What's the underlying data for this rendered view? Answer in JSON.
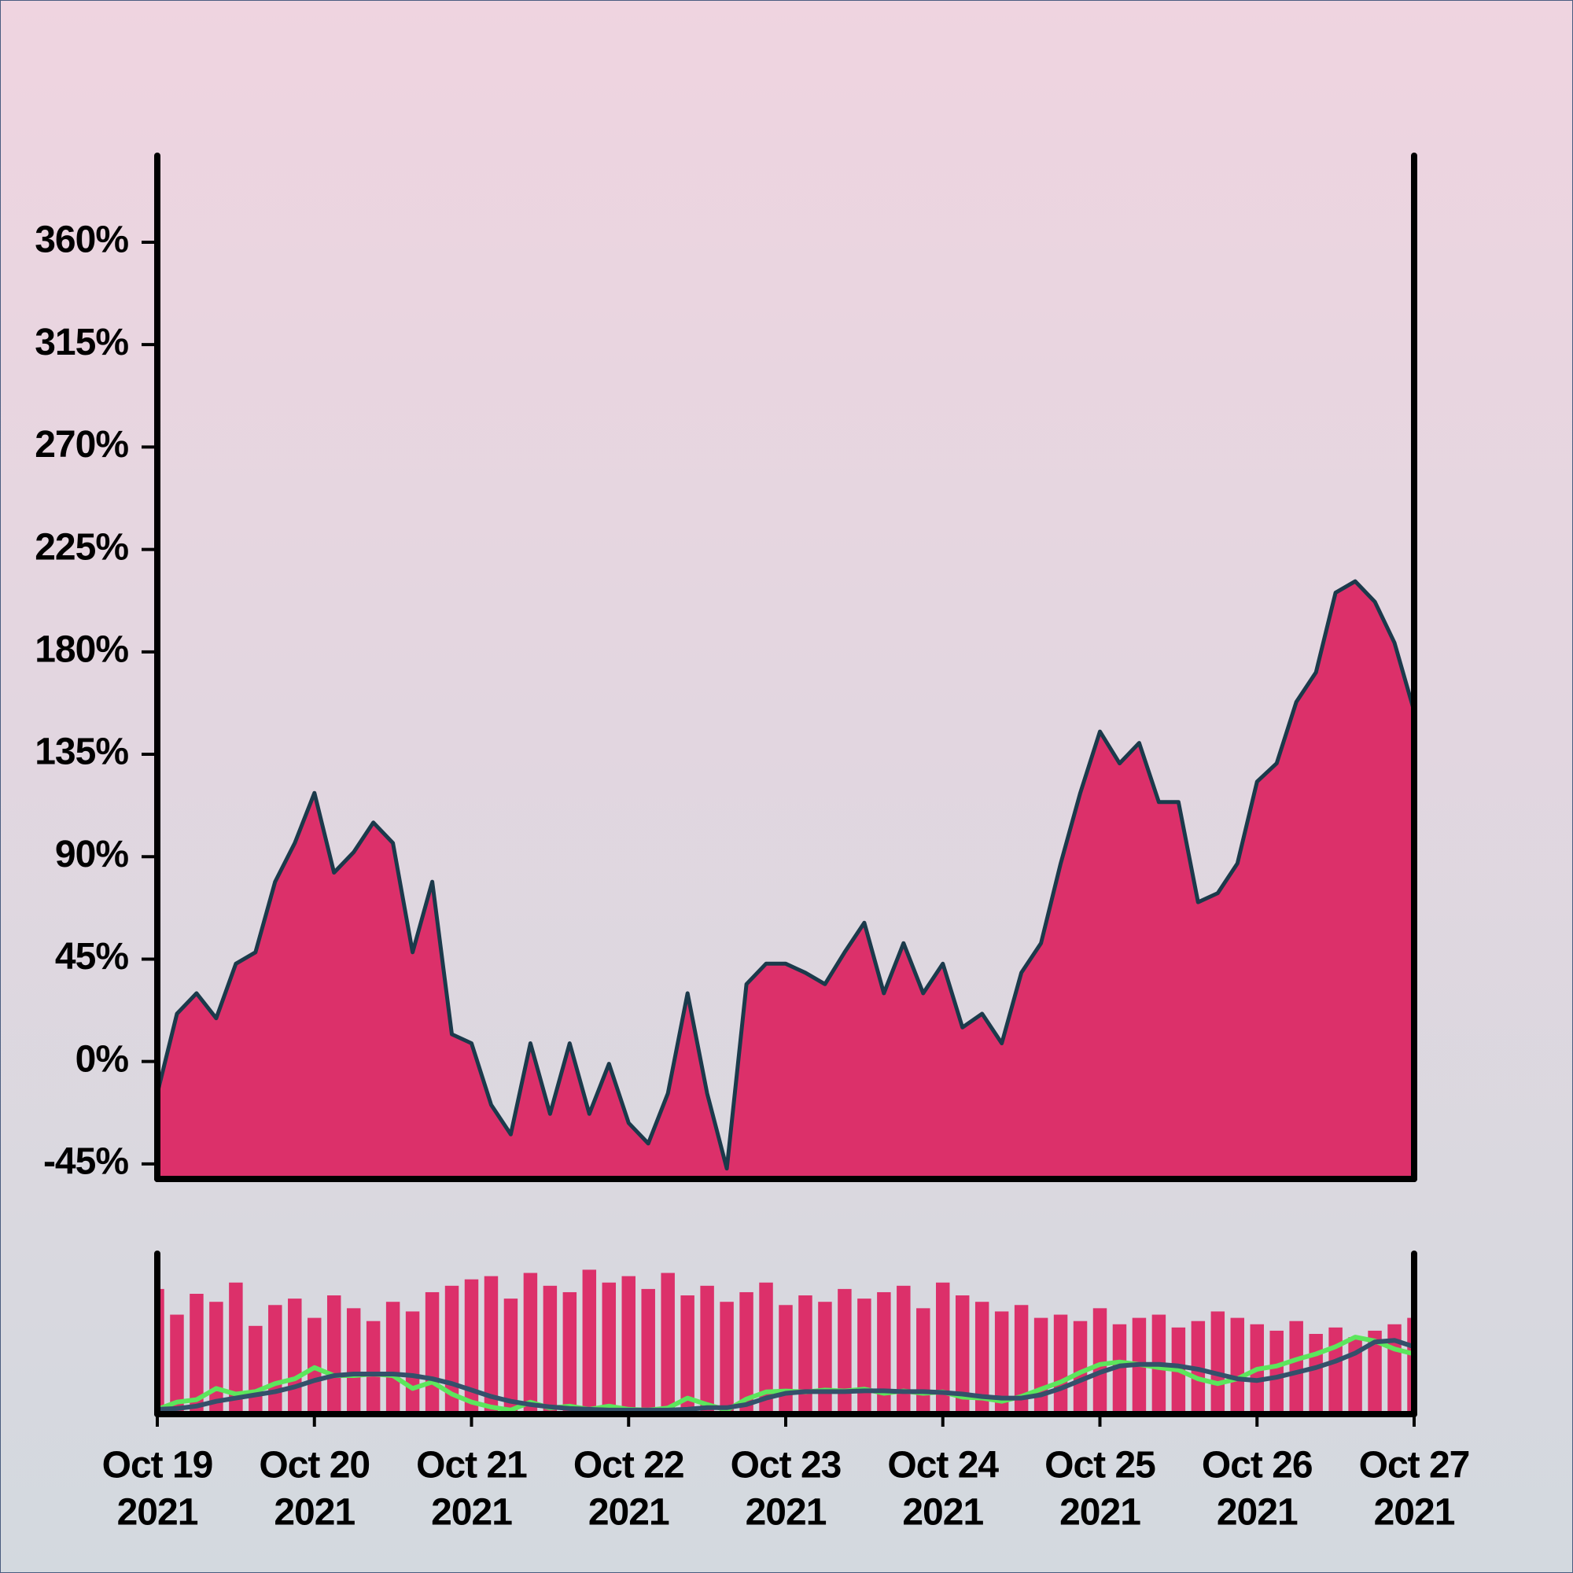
{
  "chart_data": [
    {
      "type": "area",
      "color": "#dc306a",
      "line_color": "#1b3a4b",
      "xlim": [
        "2021-10-19T00:00",
        "2021-10-27T00:00"
      ],
      "ylim": [
        -51.6,
        398
      ],
      "yticks": [
        {
          "value": -45,
          "label": "-45%"
        },
        {
          "value": 0,
          "label": "0%"
        },
        {
          "value": 45,
          "label": "45%"
        },
        {
          "value": 90,
          "label": "90%"
        },
        {
          "value": 135,
          "label": "135%"
        },
        {
          "value": 180,
          "label": "180%"
        },
        {
          "value": 225,
          "label": "225%"
        },
        {
          "value": 270,
          "label": "270%"
        },
        {
          "value": 315,
          "label": "315%"
        },
        {
          "value": 360,
          "label": "360%"
        }
      ],
      "x": [
        "2021-10-19T00:00",
        "2021-10-19T03:00",
        "2021-10-19T06:00",
        "2021-10-19T09:00",
        "2021-10-19T12:00",
        "2021-10-19T15:00",
        "2021-10-19T18:00",
        "2021-10-19T21:00",
        "2021-10-20T00:00",
        "2021-10-20T03:00",
        "2021-10-20T06:00",
        "2021-10-20T09:00",
        "2021-10-20T12:00",
        "2021-10-20T15:00",
        "2021-10-20T18:00",
        "2021-10-20T21:00",
        "2021-10-21T00:00",
        "2021-10-21T03:00",
        "2021-10-21T06:00",
        "2021-10-21T09:00",
        "2021-10-21T12:00",
        "2021-10-21T15:00",
        "2021-10-21T18:00",
        "2021-10-21T21:00",
        "2021-10-22T00:00",
        "2021-10-22T03:00",
        "2021-10-22T06:00",
        "2021-10-22T09:00",
        "2021-10-22T12:00",
        "2021-10-22T15:00",
        "2021-10-22T18:00",
        "2021-10-22T21:00",
        "2021-10-23T00:00",
        "2021-10-23T03:00",
        "2021-10-23T06:00",
        "2021-10-23T09:00",
        "2021-10-23T12:00",
        "2021-10-23T15:00",
        "2021-10-23T18:00",
        "2021-10-23T21:00",
        "2021-10-24T00:00",
        "2021-10-24T03:00",
        "2021-10-24T06:00",
        "2021-10-24T09:00",
        "2021-10-24T12:00",
        "2021-10-24T15:00",
        "2021-10-24T18:00",
        "2021-10-24T21:00",
        "2021-10-25T00:00",
        "2021-10-25T03:00",
        "2021-10-25T06:00",
        "2021-10-25T09:00",
        "2021-10-25T12:00",
        "2021-10-25T15:00",
        "2021-10-25T18:00",
        "2021-10-25T21:00",
        "2021-10-26T00:00",
        "2021-10-26T03:00",
        "2021-10-26T06:00",
        "2021-10-26T09:00",
        "2021-10-26T12:00",
        "2021-10-26T15:00",
        "2021-10-26T18:00",
        "2021-10-26T21:00",
        "2021-10-27T00:00"
      ],
      "values": [
        -14,
        21,
        30,
        19,
        43,
        48,
        79,
        96,
        118,
        83,
        92,
        105,
        96,
        48,
        79,
        12,
        8,
        -19,
        -32,
        8,
        -23,
        8,
        -23,
        -1,
        -27,
        -36,
        -14,
        30,
        -14,
        -47,
        34,
        43,
        43,
        39,
        34,
        48,
        61,
        30,
        52,
        30,
        43,
        15,
        21,
        8,
        39,
        52,
        87,
        118,
        145,
        131,
        140,
        114,
        114,
        70,
        74,
        87,
        123,
        131,
        158,
        171,
        206,
        211,
        202,
        184,
        154
      ]
    },
    {
      "type": "bar",
      "color": "#dc306a",
      "xlim": [
        "2021-10-19T00:00",
        "2021-10-27T00:00"
      ],
      "ylim": [
        0,
        100
      ],
      "xticks": [
        {
          "value": "2021-10-19T00:00",
          "label": [
            "Oct 19",
            "2021"
          ]
        },
        {
          "value": "2021-10-20T00:00",
          "label": [
            "Oct 20",
            "2021"
          ]
        },
        {
          "value": "2021-10-21T00:00",
          "label": [
            "Oct 21",
            "2021"
          ]
        },
        {
          "value": "2021-10-22T00:00",
          "label": [
            "Oct 22",
            "2021"
          ]
        },
        {
          "value": "2021-10-23T00:00",
          "label": [
            "Oct 23",
            "2021"
          ]
        },
        {
          "value": "2021-10-24T00:00",
          "label": [
            "Oct 24",
            "2021"
          ]
        },
        {
          "value": "2021-10-25T00:00",
          "label": [
            "Oct 25",
            "2021"
          ]
        },
        {
          "value": "2021-10-26T00:00",
          "label": [
            "Oct 26",
            "2021"
          ]
        },
        {
          "value": "2021-10-27T00:00",
          "label": [
            "Oct 27",
            "2021"
          ]
        }
      ],
      "x": [
        "2021-10-19T00:00",
        "2021-10-19T03:00",
        "2021-10-19T06:00",
        "2021-10-19T09:00",
        "2021-10-19T12:00",
        "2021-10-19T15:00",
        "2021-10-19T18:00",
        "2021-10-19T21:00",
        "2021-10-20T00:00",
        "2021-10-20T03:00",
        "2021-10-20T06:00",
        "2021-10-20T09:00",
        "2021-10-20T12:00",
        "2021-10-20T15:00",
        "2021-10-20T18:00",
        "2021-10-20T21:00",
        "2021-10-21T00:00",
        "2021-10-21T03:00",
        "2021-10-21T06:00",
        "2021-10-21T09:00",
        "2021-10-21T12:00",
        "2021-10-21T15:00",
        "2021-10-21T18:00",
        "2021-10-21T21:00",
        "2021-10-22T00:00",
        "2021-10-22T03:00",
        "2021-10-22T06:00",
        "2021-10-22T09:00",
        "2021-10-22T12:00",
        "2021-10-22T15:00",
        "2021-10-22T18:00",
        "2021-10-22T21:00",
        "2021-10-23T00:00",
        "2021-10-23T03:00",
        "2021-10-23T06:00",
        "2021-10-23T09:00",
        "2021-10-23T12:00",
        "2021-10-23T15:00",
        "2021-10-23T18:00",
        "2021-10-23T21:00",
        "2021-10-24T00:00",
        "2021-10-24T03:00",
        "2021-10-24T06:00",
        "2021-10-24T09:00",
        "2021-10-24T12:00",
        "2021-10-24T15:00",
        "2021-10-24T18:00",
        "2021-10-24T21:00",
        "2021-10-25T00:00",
        "2021-10-25T03:00",
        "2021-10-25T06:00",
        "2021-10-25T09:00",
        "2021-10-25T12:00",
        "2021-10-25T15:00",
        "2021-10-25T18:00",
        "2021-10-25T21:00",
        "2021-10-26T00:00",
        "2021-10-26T03:00",
        "2021-10-26T06:00",
        "2021-10-26T09:00",
        "2021-10-26T12:00",
        "2021-10-26T15:00",
        "2021-10-26T18:00",
        "2021-10-26T21:00",
        "2021-10-27T00:00"
      ],
      "values": [
        78,
        62,
        75,
        70,
        82,
        55,
        68,
        72,
        60,
        74,
        66,
        58,
        70,
        64,
        76,
        80,
        84,
        86,
        72,
        88,
        80,
        76,
        90,
        82,
        86,
        78,
        88,
        74,
        80,
        70,
        76,
        82,
        68,
        74,
        70,
        78,
        72,
        76,
        80,
        66,
        82,
        74,
        70,
        64,
        68,
        60,
        62,
        58,
        66,
        56,
        60,
        62,
        54,
        58,
        64,
        60,
        56,
        52,
        58,
        50,
        54,
        48,
        52,
        56,
        60
      ],
      "series": [
        {
          "color": "#5ce65c",
          "values": [
            3,
            7.5,
            9,
            16,
            12.5,
            14,
            19,
            22,
            29,
            24,
            24,
            25,
            24,
            16,
            20,
            12.5,
            7.5,
            4.4,
            2.5,
            7.5,
            3.8,
            5,
            3,
            5,
            3,
            2.5,
            3.8,
            10,
            6,
            2.5,
            9.4,
            13.8,
            14.4,
            13.8,
            15,
            14.4,
            15.6,
            13,
            14.4,
            13,
            13.8,
            10.6,
            10,
            8,
            11,
            15.6,
            20,
            26,
            31,
            32.5,
            31,
            29,
            27.5,
            22,
            19,
            22,
            28,
            30,
            34,
            37.5,
            42,
            48,
            45.6,
            40.6,
            37.5
          ]
        },
        {
          "color": "#34506a",
          "values": [
            3,
            3.5,
            5,
            8,
            10,
            12,
            14,
            17,
            21,
            24,
            25,
            25,
            25,
            24,
            22,
            19,
            15,
            11,
            8,
            6,
            4.5,
            3.5,
            3,
            2.5,
            2.5,
            2.5,
            2.5,
            3,
            4,
            4,
            6,
            10,
            13,
            14,
            14,
            14,
            14.5,
            14.5,
            14,
            14,
            13.5,
            12.5,
            11,
            10,
            10,
            12,
            16,
            21,
            26,
            30,
            31,
            31,
            30,
            28,
            25,
            22,
            21,
            23,
            26,
            29,
            33,
            38,
            45,
            46,
            42
          ]
        }
      ]
    }
  ]
}
